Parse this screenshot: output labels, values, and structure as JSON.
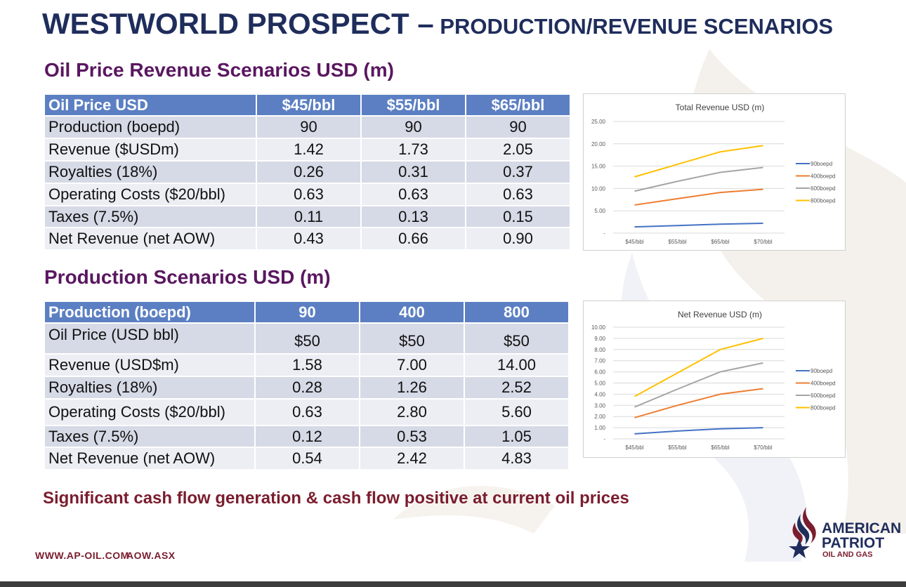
{
  "title": {
    "main": "WESTWORLD PROSPECT –",
    "sub": " PRODUCTION/REVENUE SCENARIOS"
  },
  "section1": {
    "heading": "Oil Price Revenue Scenarios USD (m)"
  },
  "table1": {
    "headers": [
      "Oil Price USD",
      "$45/bbl",
      "$55/bbl",
      "$65/bbl"
    ],
    "rows": [
      [
        "Production (boepd)",
        "90",
        "90",
        "90"
      ],
      [
        "Revenue ($USDm)",
        "1.42",
        "1.73",
        "2.05"
      ],
      [
        "Royalties (18%)",
        "0.26",
        "0.31",
        "0.37"
      ],
      [
        "Operating  Costs ($20/bbl)",
        "0.63",
        "0.63",
        "0.63"
      ],
      [
        "Taxes (7.5%)",
        "0.11",
        "0.13",
        "0.15"
      ],
      [
        "Net Revenue (net AOW)",
        "0.43",
        "0.66",
        "0.90"
      ]
    ]
  },
  "section2": {
    "heading": "Production Scenarios USD (m)"
  },
  "table2": {
    "headers": [
      "Production (boepd)",
      "90",
      "400",
      "800"
    ],
    "rows": [
      [
        "Oil Price (USD bbl)",
        "$50",
        "$50",
        "$50"
      ],
      [
        "Revenue (USD$m)",
        "1.58",
        "7.00",
        "14.00"
      ],
      [
        "Royalties (18%)",
        "0.28",
        "1.26",
        "2.52"
      ],
      [
        "Operating  Costs ($20/bbl)",
        "0.63",
        "2.80",
        "5.60"
      ],
      [
        "Taxes (7.5%)",
        "0.12",
        "0.53",
        "1.05"
      ],
      [
        "Net Revenue (net AOW)",
        "0.54",
        "2.42",
        "4.83"
      ]
    ]
  },
  "chart_data": [
    {
      "type": "line",
      "title": "Total Revenue USD (m)",
      "categories": [
        "$45/bbl",
        "$55/bbl",
        "$65/bbl",
        "$70/bbl"
      ],
      "ylim": [
        0,
        25
      ],
      "yticks": [
        "-",
        "5.00",
        "10.00",
        "15.00",
        "20.00",
        "25.00"
      ],
      "ytick_values": [
        0,
        5,
        10,
        15,
        20,
        25
      ],
      "grid": true,
      "legend": "right",
      "series": [
        {
          "name": "90boepd",
          "color": "#4472c4",
          "values": [
            1.4,
            1.7,
            2.0,
            2.2
          ]
        },
        {
          "name": "400boepd",
          "color": "#ed7d31",
          "values": [
            6.3,
            7.7,
            9.1,
            9.8
          ]
        },
        {
          "name": "600boepd",
          "color": "#a5a5a5",
          "values": [
            9.4,
            11.6,
            13.6,
            14.7
          ]
        },
        {
          "name": "800boepd",
          "color": "#ffc000",
          "values": [
            12.6,
            15.4,
            18.2,
            19.6
          ]
        }
      ]
    },
    {
      "type": "line",
      "title": "Net Revenue USD (m)",
      "categories": [
        "$45/bbl",
        "$55/bbl",
        "$65/bbl",
        "$70/bbl"
      ],
      "ylim": [
        0,
        10
      ],
      "yticks": [
        "-",
        "1.00",
        "2.00",
        "3.00",
        "4.00",
        "5.00",
        "6.00",
        "7.00",
        "8.00",
        "9.00",
        "10.00"
      ],
      "ytick_values": [
        0,
        1,
        2,
        3,
        4,
        5,
        6,
        7,
        8,
        9,
        10
      ],
      "grid": true,
      "legend": "right",
      "series": [
        {
          "name": "90boepd",
          "color": "#4472c4",
          "values": [
            0.45,
            0.7,
            0.9,
            1.0
          ]
        },
        {
          "name": "400boepd",
          "color": "#ed7d31",
          "values": [
            1.9,
            3.0,
            4.0,
            4.5
          ]
        },
        {
          "name": "600boepd",
          "color": "#a5a5a5",
          "values": [
            2.85,
            4.45,
            6.0,
            6.8
          ]
        },
        {
          "name": "800boepd",
          "color": "#ffc000",
          "values": [
            3.8,
            5.9,
            8.0,
            9.0
          ]
        }
      ]
    }
  ],
  "tagline": "Significant cash flow generation & cash flow positive at current oil prices",
  "footer": {
    "website": "WWW.AP-OIL.COM",
    "ticker": "AOW.ASX"
  },
  "logo": {
    "line1": "AMERICAN",
    "line2": "PATRIOT",
    "line3": "OIL AND GAS"
  },
  "colors": {
    "title": "#1f2d5c",
    "subheading": "#5a1760",
    "accent": "#7a1d2e",
    "table_header": "#5b7fc2"
  }
}
